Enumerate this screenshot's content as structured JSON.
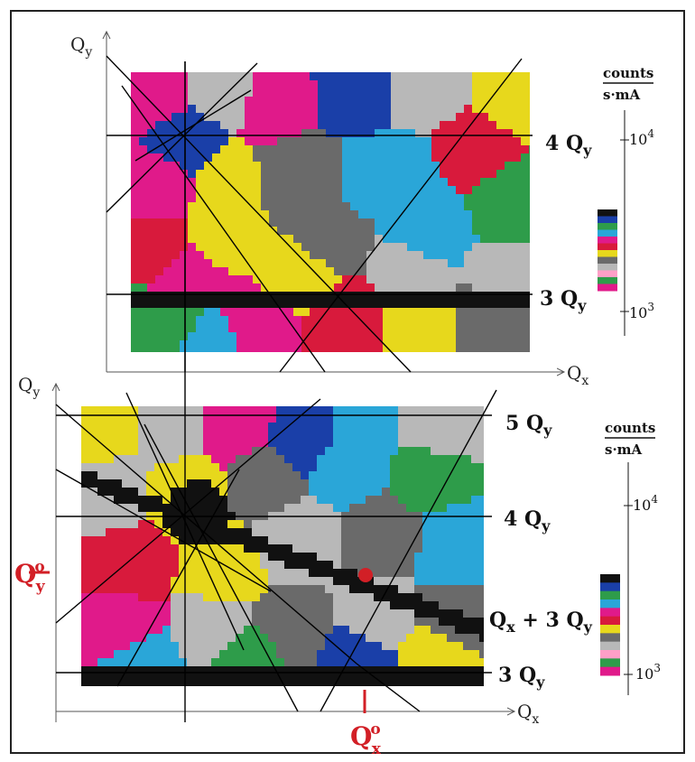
{
  "top_panel": {
    "y_axis_label": "Q",
    "y_axis_sub": "y",
    "x_axis_label": "Q",
    "x_axis_sub": "x",
    "resonances": [
      {
        "label": "4 Q",
        "sub": "y"
      },
      {
        "label": "3 Q",
        "sub": "y"
      }
    ],
    "colorbar": {
      "title_top": "counts",
      "title_bottom": "s·mA",
      "tick_high_base": "10",
      "tick_high_exp": "4",
      "tick_low_base": "10",
      "tick_low_exp": "3"
    }
  },
  "bottom_panel": {
    "y_axis_label": "Q",
    "y_axis_sub": "y",
    "x_axis_label": "Q",
    "x_axis_sub": "x",
    "resonances": [
      {
        "label": "5 Q",
        "sub": "y"
      },
      {
        "label": "4 Q",
        "sub": "y"
      },
      {
        "label": "Q",
        "sub": "x",
        "tail": " + 3 Q",
        "tail_sub": "y"
      },
      {
        "label": "3 Q",
        "sub": "y"
      }
    ],
    "working_point_y": {
      "label": "Q",
      "sup": "o",
      "sub": "y"
    },
    "working_point_x": {
      "label": "Q",
      "sup": "o",
      "sub": "x"
    },
    "colorbar": {
      "title_top": "counts",
      "title_bottom": "s·mA",
      "tick_high_base": "10",
      "tick_high_exp": "4",
      "tick_low_base": "10",
      "tick_low_exp": "3"
    }
  },
  "palette": [
    "#111111",
    "#1a3fa8",
    "#2e9c4a",
    "#2aa6d8",
    "#e01a8a",
    "#d81a3c",
    "#e7d81c",
    "#6a6a6a",
    "#b8b8b8",
    "#ff9fc7"
  ],
  "colors": {
    "accent_red": "#d21f26",
    "line": "#000000",
    "axis": "#555555"
  }
}
